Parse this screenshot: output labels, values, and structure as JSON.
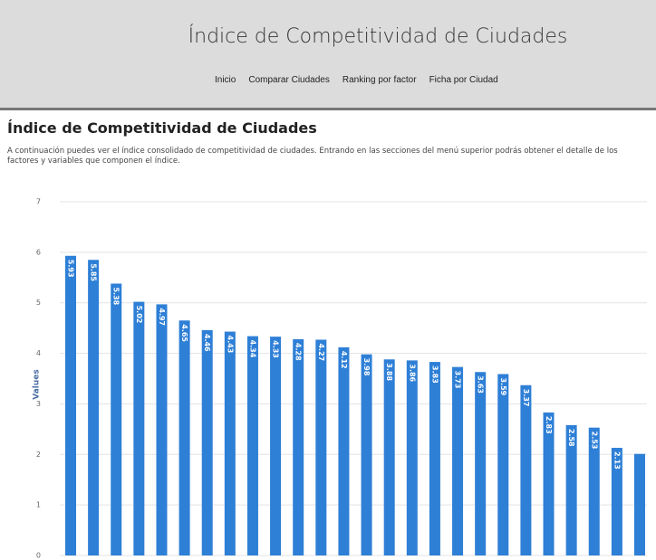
{
  "header": {
    "title": "Índice de Competitividad de Ciudades",
    "nav": [
      "Inicio",
      "Comparar Ciudades",
      "Ranking por factor",
      "Ficha por Ciudad"
    ]
  },
  "content": {
    "heading": "Índice de Competitividad de Ciudades",
    "description": "A continuación puedes ver el índice consolidado de competitividad de ciudades. Entrando en las secciones del menú superior podrás obtener el detalle de los factores y variables que componen el índice."
  },
  "chart_data": {
    "type": "bar",
    "y_label": "Values",
    "color": "#2e7fd6",
    "values": [
      5.93,
      5.85,
      5.38,
      5.02,
      4.97,
      4.65,
      4.46,
      4.43,
      4.34,
      4.33,
      4.28,
      4.27,
      4.12,
      3.98,
      3.88,
      3.86,
      3.83,
      3.73,
      3.63,
      3.59,
      3.37,
      2.83,
      2.58,
      2.53,
      2.13,
      2.01
    ],
    "value_labels": [
      "5.93",
      "5.85",
      "5.38",
      "5.02",
      "4.97",
      "4.65",
      "4.46",
      "4.43",
      "4.34",
      "4.33",
      "4.28",
      "4.27",
      "4.12",
      "3.98",
      "3.88",
      "3.86",
      "3.83",
      "3.73",
      "3.63",
      "3.59",
      "3.37",
      "2.83",
      "2.58",
      "2.53",
      "2.13",
      null
    ],
    "ylim": [
      0,
      7
    ],
    "yticks": [
      0,
      1,
      2,
      3,
      4,
      5,
      6,
      7
    ],
    "grid": true
  }
}
